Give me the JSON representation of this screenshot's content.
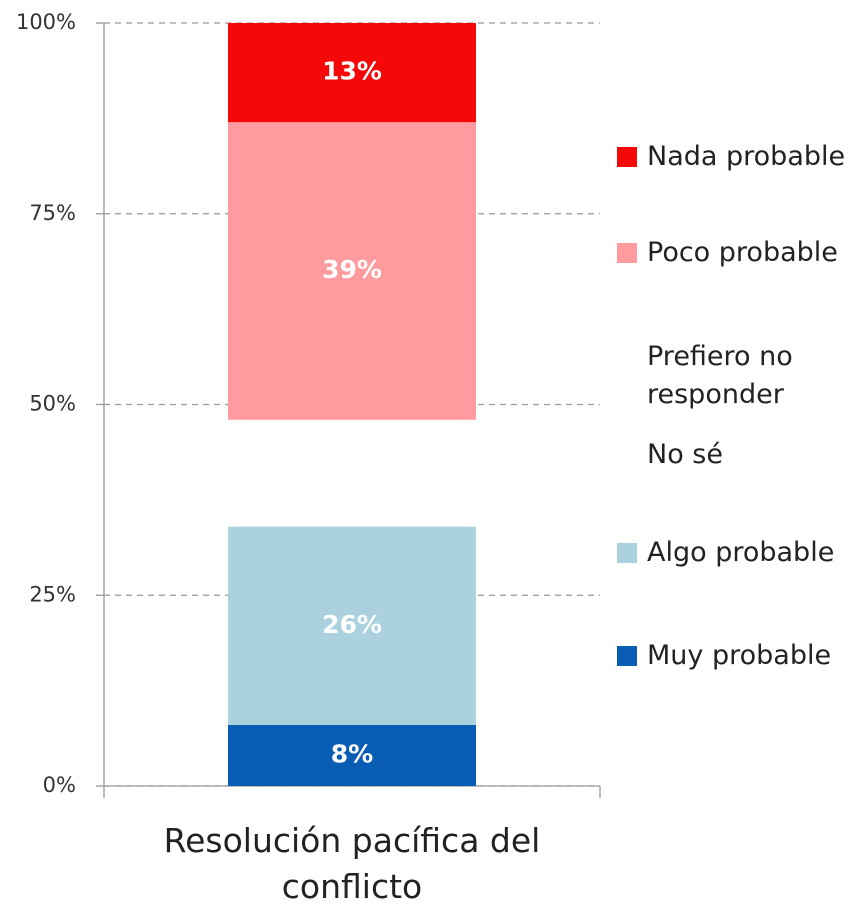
{
  "chart_data": {
    "type": "stacked_bar",
    "categories": [
      "Resolución pacífica del conflicto"
    ],
    "series": [
      {
        "name": "Muy probable",
        "color": "#0a5db4",
        "values": [
          8
        ],
        "value_labels": [
          "8%"
        ]
      },
      {
        "name": "Algo probable",
        "color": "#abd1df",
        "values": [
          26
        ],
        "value_labels": [
          "26%"
        ]
      },
      {
        "name": "No sé",
        "color": "#ffffff",
        "values": [
          13
        ]
      },
      {
        "name": "Prefiero no responder",
        "color": "#ffffff",
        "values": [
          1
        ]
      },
      {
        "name": "Poco probable",
        "color": "#ff9b9f",
        "values": [
          39
        ],
        "value_labels": [
          "39%"
        ]
      },
      {
        "name": "Nada probable",
        "color": "#f50808",
        "values": [
          13
        ],
        "value_labels": [
          "13%"
        ]
      }
    ],
    "ylim": [
      0,
      100
    ],
    "yticks": [
      {
        "value": 0,
        "label": "0%"
      },
      {
        "value": 25,
        "label": "25%"
      },
      {
        "value": 50,
        "label": "50%"
      },
      {
        "value": 75,
        "label": "75%"
      },
      {
        "value": 100,
        "label": "100%"
      }
    ],
    "grid": true,
    "legend": "right"
  }
}
